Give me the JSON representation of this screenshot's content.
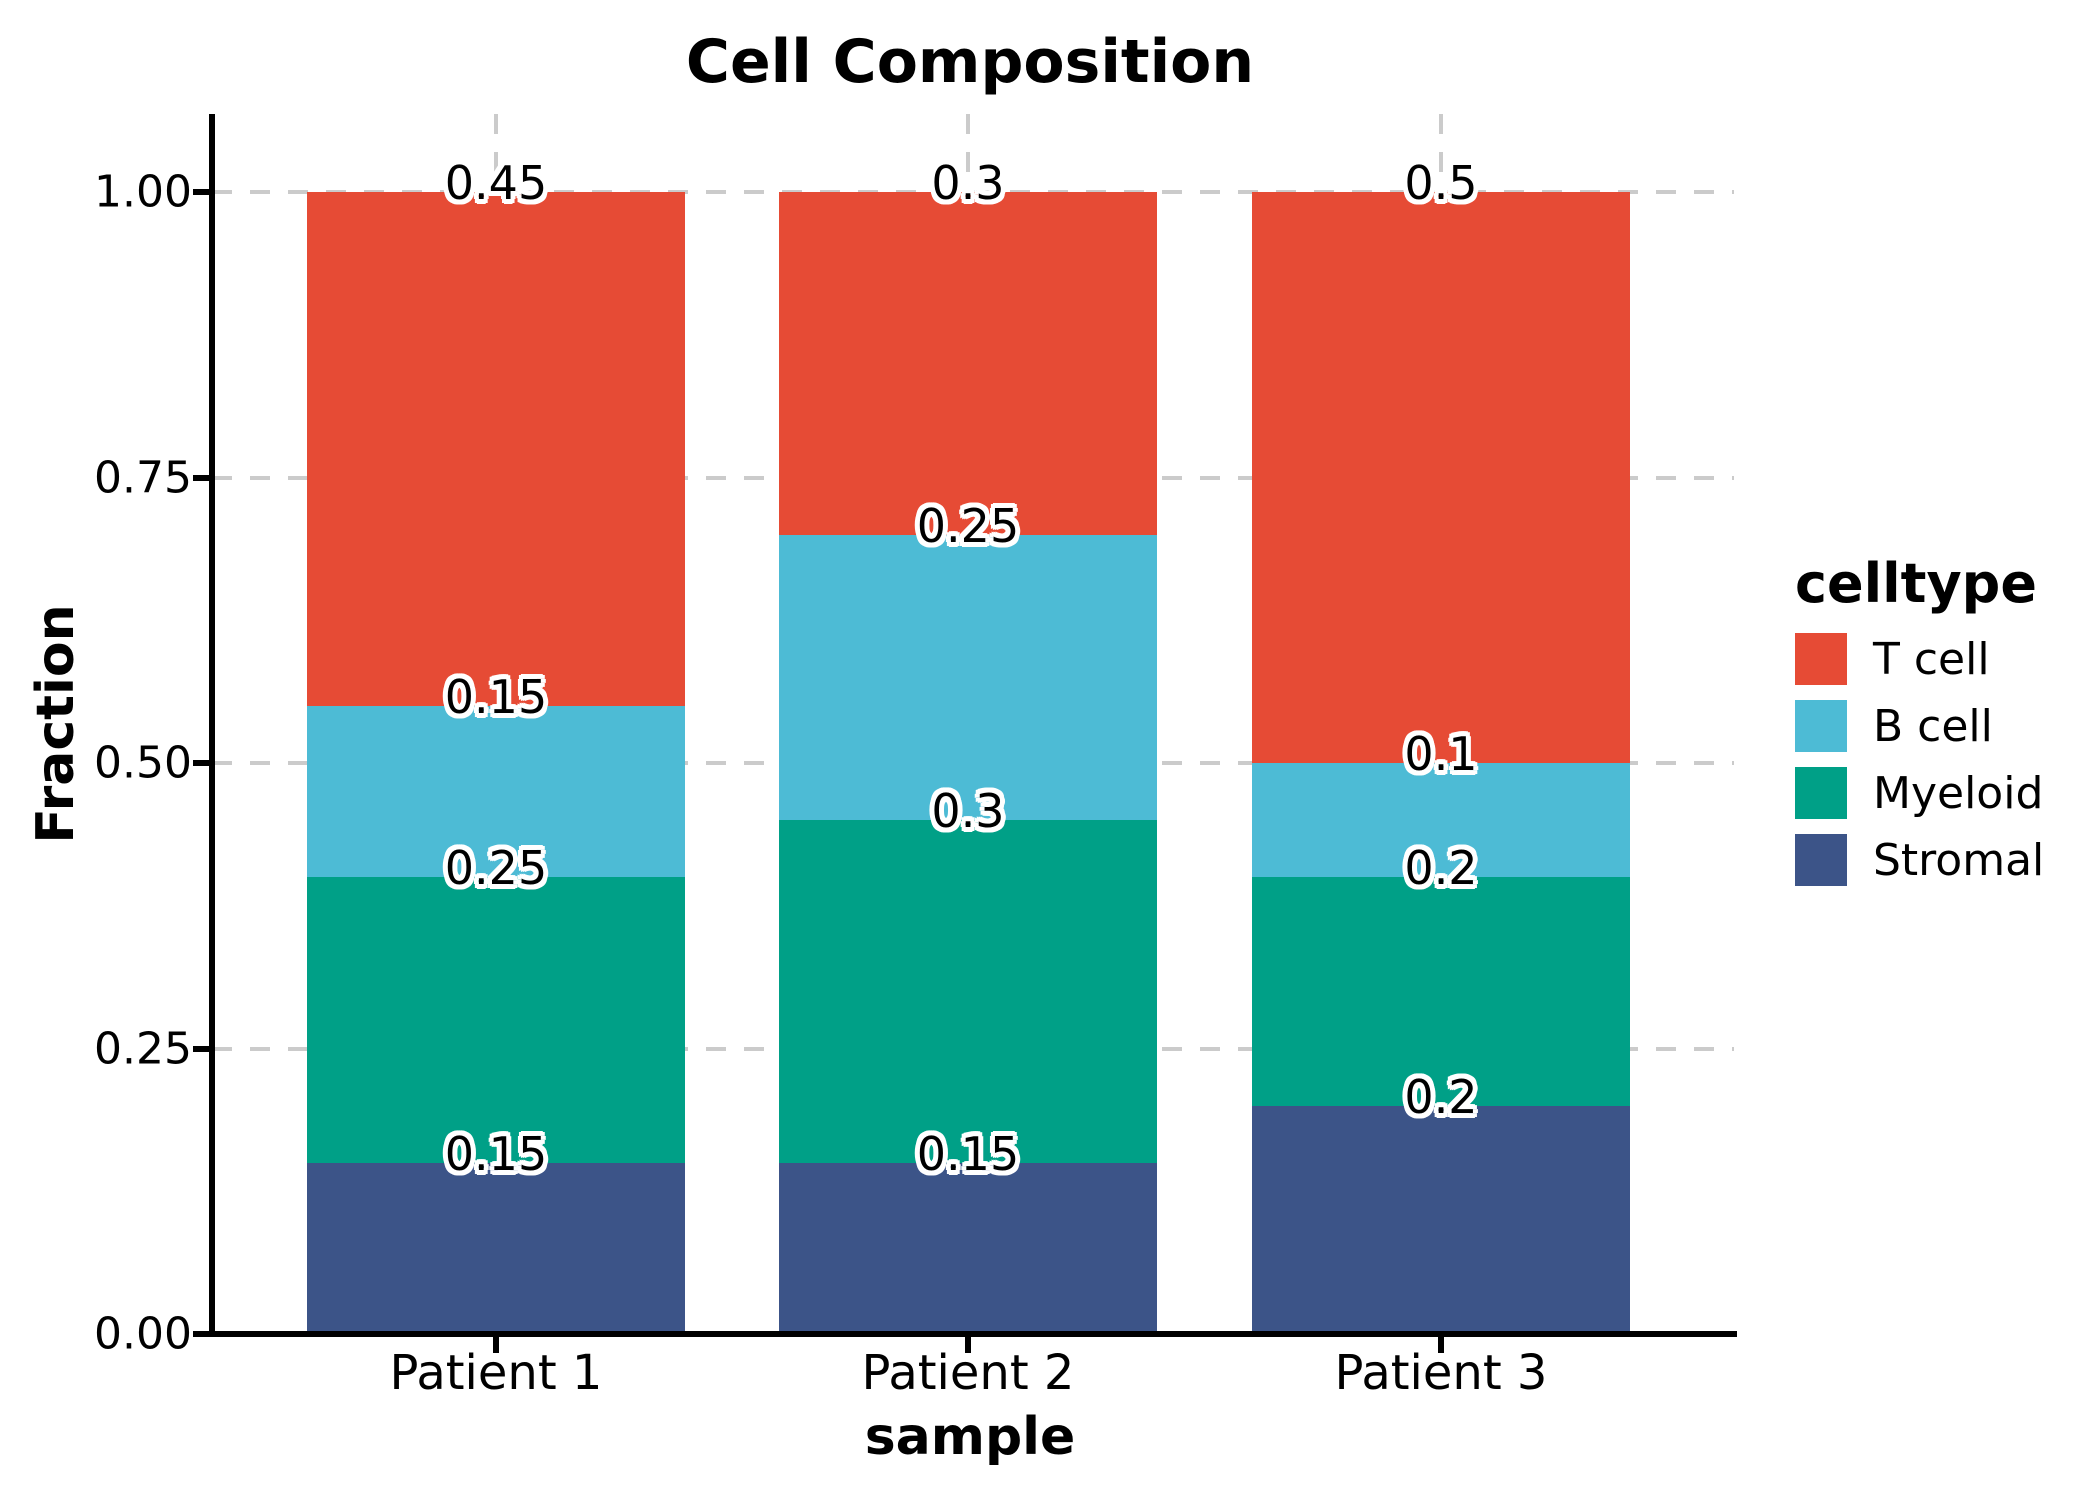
{
  "title": "Cell Composition",
  "y_axis": {
    "label": "Fraction",
    "ticks": [
      {
        "value": 1.0,
        "label": "1.00"
      },
      {
        "value": 0.75,
        "label": "0.75"
      },
      {
        "value": 0.5,
        "label": "0.50"
      },
      {
        "value": 0.25,
        "label": "0.25"
      },
      {
        "value": 0.0,
        "label": "0.00"
      }
    ]
  },
  "x_axis": {
    "label": "sample",
    "categories": [
      "Patient 1",
      "Patient 2",
      "Patient 3"
    ]
  },
  "legend": {
    "title": "celltype",
    "entries": [
      {
        "label": "T cell",
        "color": "#E64B35"
      },
      {
        "label": "B cell",
        "color": "#4DBBD5"
      },
      {
        "label": "Myeloid",
        "color": "#00A087"
      },
      {
        "label": "Stromal",
        "color": "#3C5488"
      }
    ]
  },
  "colors": {
    "axis": "#000000",
    "grid": "#CBCBCB",
    "text": "#000000",
    "value_label_outline": "#FFFFFF",
    "background": "#FFFFFF"
  },
  "chart_data": {
    "type": "bar",
    "stacked": true,
    "title": "Cell Composition",
    "xlabel": "sample",
    "ylabel": "Fraction",
    "categories": [
      "Patient 1",
      "Patient 2",
      "Patient 3"
    ],
    "stack_order_bottom_to_top": [
      "Stromal",
      "Myeloid",
      "B cell",
      "T cell"
    ],
    "series": [
      {
        "name": "Stromal",
        "color": "#3C5488",
        "values": [
          0.15,
          0.15,
          0.2
        ],
        "value_labels": [
          "0.15",
          "0.15",
          "0.2"
        ]
      },
      {
        "name": "Myeloid",
        "color": "#00A087",
        "values": [
          0.25,
          0.3,
          0.2
        ],
        "value_labels": [
          "0.25",
          "0.3",
          "0.2"
        ]
      },
      {
        "name": "B cell",
        "color": "#4DBBD5",
        "values": [
          0.15,
          0.25,
          0.1
        ],
        "value_labels": [
          "0.15",
          "0.25",
          "0.1"
        ]
      },
      {
        "name": "T cell",
        "color": "#E64B35",
        "values": [
          0.45,
          0.3,
          0.5
        ],
        "value_labels": [
          "0.45",
          "0.3",
          "0.5"
        ]
      }
    ],
    "ylim": [
      0,
      1
    ],
    "grid": "major dashed",
    "legend_position": "right"
  }
}
